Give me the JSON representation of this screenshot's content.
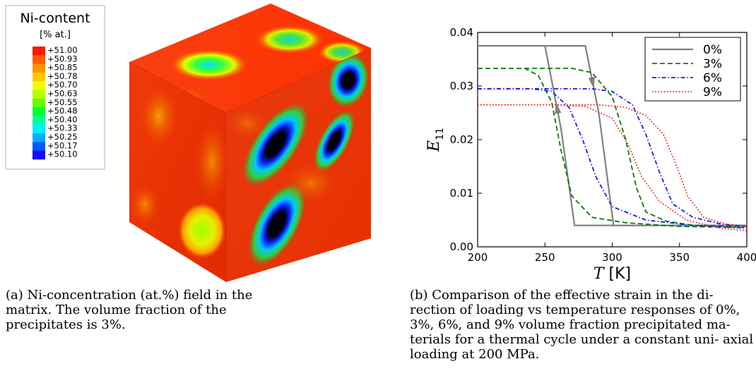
{
  "figure": {
    "left_panel": {
      "legend": {
        "title": "Ni-content",
        "unit": "[% at.]",
        "values": [
          "+51.00",
          "+50.93",
          "+50.85",
          "+50.78",
          "+50.70",
          "+50.63",
          "+50.55",
          "+50.48",
          "+50.40",
          "+50.33",
          "+50.25",
          "+50.17",
          "+50.10"
        ],
        "colors": [
          "#ff1800",
          "#ff5a00",
          "#ff9400",
          "#ffc800",
          "#f0ff00",
          "#b8ff00",
          "#60ff00",
          "#00ff30",
          "#00ff98",
          "#00f0ff",
          "#00b0ff",
          "#0058ff",
          "#1010ff"
        ]
      },
      "caption": "(a) Ni-concentration (at.%) field in the matrix. The volume fraction of the precipitates is 3%."
    },
    "right_panel": {
      "caption": "(b) Comparison of the effective strain in the di- rection of loading vs temperature responses of 0%, 3%, 6%, and 9% volume fraction precipitated ma- terials for a thermal cycle under a constant uni- axial loading at 200 MPa."
    }
  },
  "chart_data": {
    "type": "line",
    "title": "",
    "xlabel": "T [K]",
    "ylabel": "E11",
    "xlim": [
      200,
      400
    ],
    "ylim": [
      0.0,
      0.04
    ],
    "x_ticks": [
      "200",
      "250",
      "300",
      "350",
      "400"
    ],
    "y_ticks": [
      "0.00",
      "0.01",
      "0.02",
      "0.03",
      "0.04"
    ],
    "grid": false,
    "legend_position": "top-right",
    "series": [
      {
        "name": "0%",
        "color": "#808080",
        "style": "solid",
        "cooling": {
          "x": [
            200,
            250,
            262,
            272,
            400
          ],
          "y": [
            0.0375,
            0.0375,
            0.022,
            0.004,
            0.004
          ]
        },
        "heating": {
          "x": [
            200,
            280,
            290,
            301,
            400
          ],
          "y": [
            0.0375,
            0.0375,
            0.025,
            0.004,
            0.004
          ]
        }
      },
      {
        "name": "3%",
        "color": "#0a7a0a",
        "style": "dashed",
        "cooling": {
          "x": [
            200,
            235,
            245,
            255,
            262,
            270,
            285,
            310,
            350,
            400
          ],
          "y": [
            0.0333,
            0.0333,
            0.032,
            0.027,
            0.018,
            0.0095,
            0.0055,
            0.0045,
            0.0038,
            0.0036
          ]
        },
        "heating": {
          "x": [
            200,
            270,
            285,
            300,
            310,
            318,
            325,
            340,
            360,
            400
          ],
          "y": [
            0.0333,
            0.0333,
            0.0325,
            0.028,
            0.02,
            0.011,
            0.0065,
            0.0048,
            0.004,
            0.0038
          ]
        }
      },
      {
        "name": "6%",
        "color": "#1a1aee",
        "style": "dashdot",
        "cooling": {
          "x": [
            200,
            240,
            255,
            268,
            278,
            288,
            300,
            325,
            360,
            400
          ],
          "y": [
            0.0295,
            0.0295,
            0.029,
            0.026,
            0.02,
            0.013,
            0.0075,
            0.005,
            0.004,
            0.0035
          ]
        },
        "heating": {
          "x": [
            200,
            285,
            300,
            315,
            325,
            335,
            345,
            360,
            380,
            400
          ],
          "y": [
            0.0295,
            0.0295,
            0.029,
            0.0265,
            0.021,
            0.014,
            0.008,
            0.0055,
            0.0043,
            0.0038
          ]
        }
      },
      {
        "name": "9%",
        "color": "#ee1a1a",
        "style": "dotted",
        "cooling": {
          "x": [
            200,
            255,
            280,
            300,
            312,
            322,
            335,
            355,
            380,
            400
          ],
          "y": [
            0.0265,
            0.0265,
            0.0262,
            0.024,
            0.019,
            0.013,
            0.0085,
            0.005,
            0.0035,
            0.003
          ]
        },
        "heating": {
          "x": [
            200,
            290,
            310,
            325,
            338,
            348,
            356,
            368,
            385,
            400
          ],
          "y": [
            0.0265,
            0.0265,
            0.026,
            0.0245,
            0.021,
            0.015,
            0.0095,
            0.0055,
            0.0042,
            0.0038
          ]
        }
      }
    ]
  }
}
